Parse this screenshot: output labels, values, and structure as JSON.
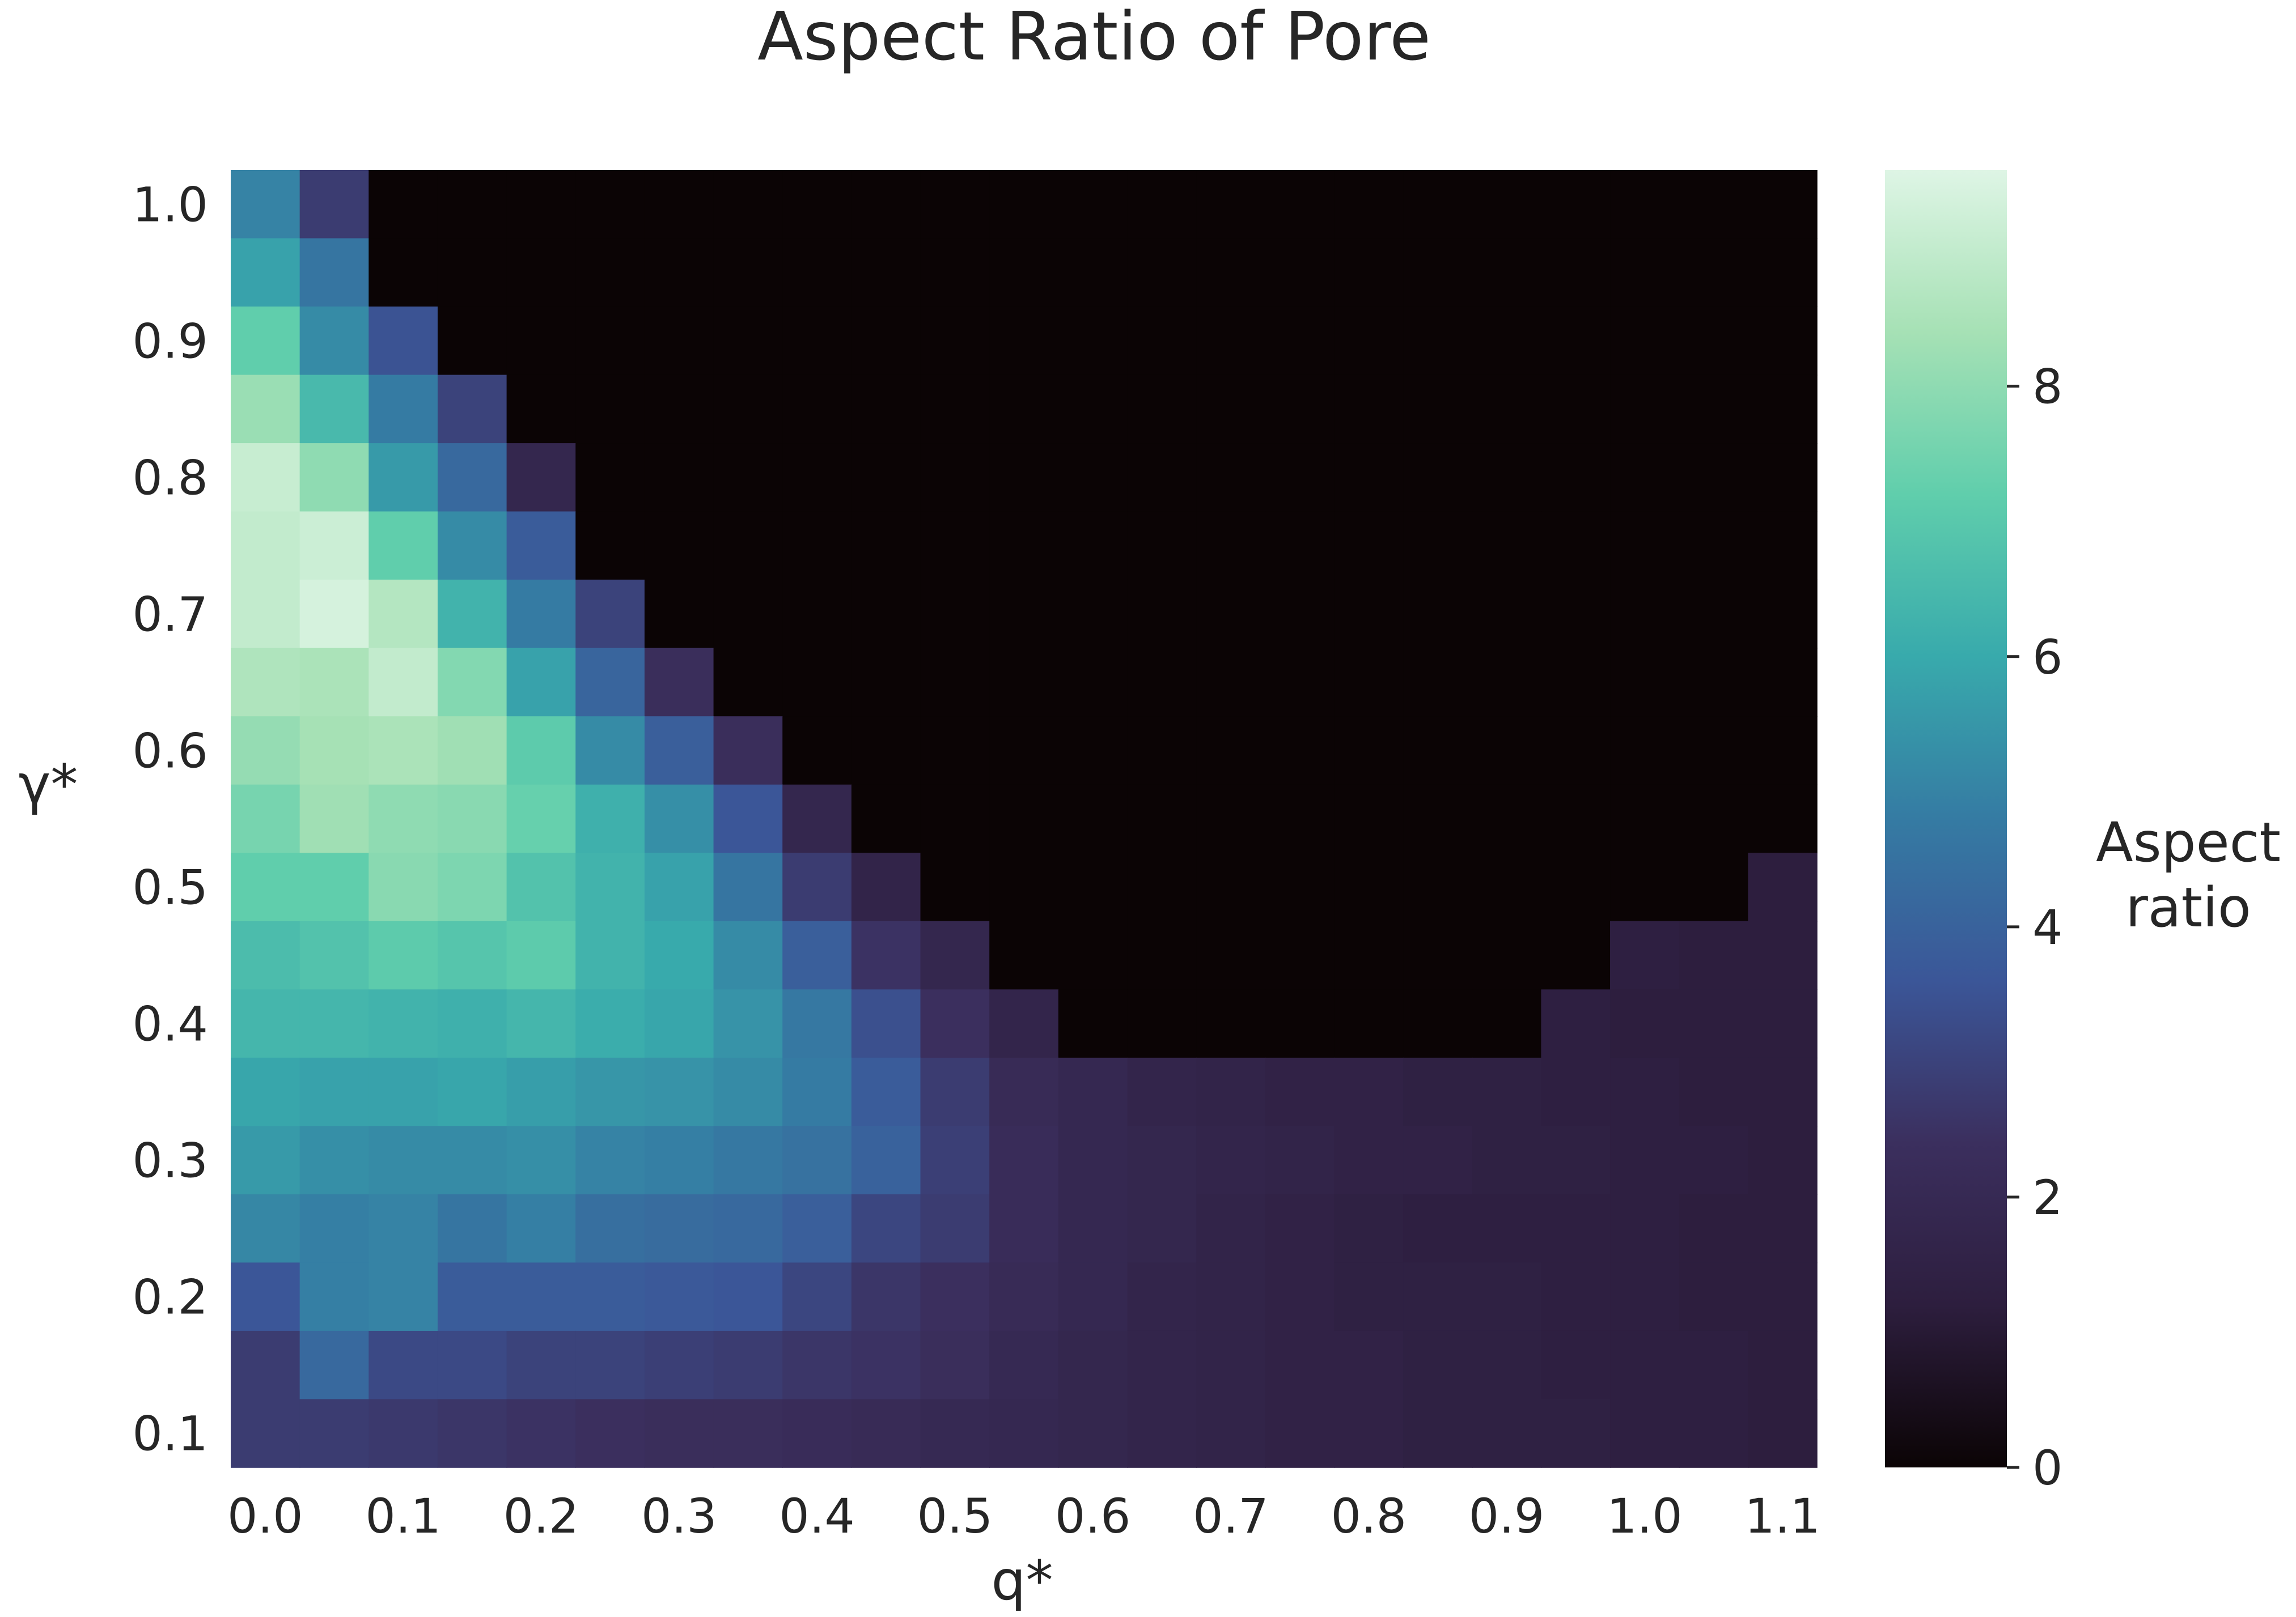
{
  "chart_data": {
    "type": "heatmap",
    "title": "Aspect Ratio of Pore",
    "xlabel": "q*",
    "ylabel": "γ*",
    "x_tick_labels": [
      "0.0",
      "0.1",
      "0.2",
      "0.3",
      "0.4",
      "0.5",
      "0.6",
      "0.7",
      "0.8",
      "0.9",
      "1.0",
      "1.1"
    ],
    "y_tick_labels": [
      "1.0",
      "0.9",
      "0.8",
      "0.7",
      "0.6",
      "0.5",
      "0.4",
      "0.3",
      "0.2",
      "0.1"
    ],
    "x_values": [
      0.0,
      0.05,
      0.1,
      0.15,
      0.2,
      0.25,
      0.3,
      0.35,
      0.4,
      0.45,
      0.5,
      0.55,
      0.6,
      0.65,
      0.7,
      0.75,
      0.8,
      0.85,
      0.9,
      0.95,
      1.0,
      1.05,
      1.1
    ],
    "y_values": [
      1.0,
      0.95,
      0.9,
      0.85,
      0.8,
      0.75,
      0.7,
      0.65,
      0.6,
      0.55,
      0.5,
      0.45,
      0.4,
      0.35,
      0.3,
      0.25,
      0.2,
      0.15,
      0.1
    ],
    "values": [
      [
        5.0,
        2.8,
        0,
        0,
        0,
        0,
        0,
        0,
        0,
        0,
        0,
        0,
        0,
        0,
        0,
        0,
        0,
        0,
        0,
        0,
        0,
        0,
        0
      ],
      [
        5.8,
        4.6,
        0,
        0,
        0,
        0,
        0,
        0,
        0,
        0,
        0,
        0,
        0,
        0,
        0,
        0,
        0,
        0,
        0,
        0,
        0,
        0,
        0
      ],
      [
        7.2,
        5.2,
        3.5,
        0,
        0,
        0,
        0,
        0,
        0,
        0,
        0,
        0,
        0,
        0,
        0,
        0,
        0,
        0,
        0,
        0,
        0,
        0,
        0
      ],
      [
        8.2,
        6.5,
        4.8,
        3.0,
        0,
        0,
        0,
        0,
        0,
        0,
        0,
        0,
        0,
        0,
        0,
        0,
        0,
        0,
        0,
        0,
        0,
        0,
        0
      ],
      [
        9.1,
        8.0,
        5.6,
        4.2,
        1.8,
        0,
        0,
        0,
        0,
        0,
        0,
        0,
        0,
        0,
        0,
        0,
        0,
        0,
        0,
        0,
        0,
        0,
        0
      ],
      [
        9.0,
        9.2,
        7.2,
        5.2,
        3.8,
        0,
        0,
        0,
        0,
        0,
        0,
        0,
        0,
        0,
        0,
        0,
        0,
        0,
        0,
        0,
        0,
        0,
        0
      ],
      [
        9.0,
        9.4,
        8.7,
        6.3,
        4.8,
        3.0,
        0,
        0,
        0,
        0,
        0,
        0,
        0,
        0,
        0,
        0,
        0,
        0,
        0,
        0,
        0,
        0,
        0
      ],
      [
        8.6,
        8.5,
        9.0,
        7.8,
        5.8,
        4.1,
        2.3,
        0,
        0,
        0,
        0,
        0,
        0,
        0,
        0,
        0,
        0,
        0,
        0,
        0,
        0,
        0,
        0
      ],
      [
        8.1,
        8.4,
        8.5,
        8.3,
        7.1,
        5.2,
        3.9,
        2.3,
        0,
        0,
        0,
        0,
        0,
        0,
        0,
        0,
        0,
        0,
        0,
        0,
        0,
        0,
        0
      ],
      [
        7.6,
        8.3,
        8.0,
        7.9,
        7.3,
        6.2,
        5.3,
        3.6,
        1.8,
        0,
        0,
        0,
        0,
        0,
        0,
        0,
        0,
        0,
        0,
        0,
        0,
        0,
        0
      ],
      [
        7.2,
        7.2,
        7.9,
        7.7,
        6.8,
        6.3,
        5.8,
        4.6,
        2.8,
        1.6,
        0,
        0,
        0,
        0,
        0,
        0,
        0,
        0,
        0,
        0,
        0,
        0,
        1.2
      ],
      [
        6.6,
        6.8,
        7.1,
        6.9,
        7.1,
        6.3,
        6.0,
        5.2,
        3.9,
        2.5,
        1.8,
        0,
        0,
        0,
        0,
        0,
        0,
        0,
        0,
        0,
        1.3,
        1.2,
        1.2
      ],
      [
        6.4,
        6.4,
        6.3,
        6.2,
        6.4,
        6.1,
        5.9,
        5.4,
        4.7,
        3.4,
        2.4,
        1.7,
        0,
        0,
        0,
        0,
        0,
        0,
        0,
        1.3,
        1.2,
        1.2,
        1.2
      ],
      [
        5.9,
        5.8,
        5.8,
        5.9,
        5.7,
        5.5,
        5.4,
        5.2,
        4.8,
        3.8,
        2.8,
        2.1,
        1.9,
        1.7,
        1.6,
        1.5,
        1.5,
        1.4,
        1.4,
        1.3,
        1.3,
        1.2,
        1.2
      ],
      [
        5.6,
        5.3,
        5.2,
        5.2,
        5.3,
        5.0,
        4.9,
        4.7,
        4.5,
        4.0,
        2.9,
        2.2,
        1.9,
        1.8,
        1.7,
        1.6,
        1.5,
        1.5,
        1.4,
        1.4,
        1.3,
        1.3,
        1.2
      ],
      [
        5.1,
        4.9,
        5.0,
        4.6,
        4.9,
        4.4,
        4.3,
        4.2,
        3.9,
        3.1,
        2.8,
        2.2,
        1.9,
        1.8,
        1.6,
        1.5,
        1.4,
        1.3,
        1.3,
        1.3,
        1.3,
        1.2,
        1.2
      ],
      [
        3.6,
        4.9,
        5.0,
        3.8,
        3.8,
        3.8,
        3.7,
        3.6,
        3.1,
        2.6,
        2.4,
        2.1,
        1.9,
        1.7,
        1.6,
        1.5,
        1.4,
        1.4,
        1.4,
        1.3,
        1.3,
        1.2,
        1.2
      ],
      [
        2.8,
        4.2,
        3.2,
        3.2,
        3.0,
        3.0,
        2.9,
        2.8,
        2.6,
        2.5,
        2.3,
        2.0,
        1.8,
        1.7,
        1.6,
        1.5,
        1.5,
        1.4,
        1.4,
        1.3,
        1.3,
        1.3,
        1.2
      ],
      [
        2.8,
        2.8,
        2.7,
        2.6,
        2.5,
        2.4,
        2.3,
        2.3,
        2.2,
        2.1,
        2.0,
        1.9,
        1.8,
        1.7,
        1.6,
        1.5,
        1.5,
        1.4,
        1.4,
        1.4,
        1.3,
        1.3,
        1.2
      ]
    ],
    "colorbar": {
      "label": "Aspect ratio",
      "label_lines": [
        "Aspect",
        "ratio"
      ],
      "min": 0,
      "max": 9.6,
      "ticks": [
        0,
        2,
        4,
        6,
        8
      ],
      "tick_labels": [
        "0",
        "2",
        "4",
        "6",
        "8"
      ],
      "colormap": "mako",
      "colormap_stops": [
        "#0b0405",
        "#2d1e3e",
        "#3b2f5e",
        "#3b5698",
        "#357ba3",
        "#38aaac",
        "#60ceac",
        "#a6e1b5",
        "#def5e5"
      ]
    }
  }
}
